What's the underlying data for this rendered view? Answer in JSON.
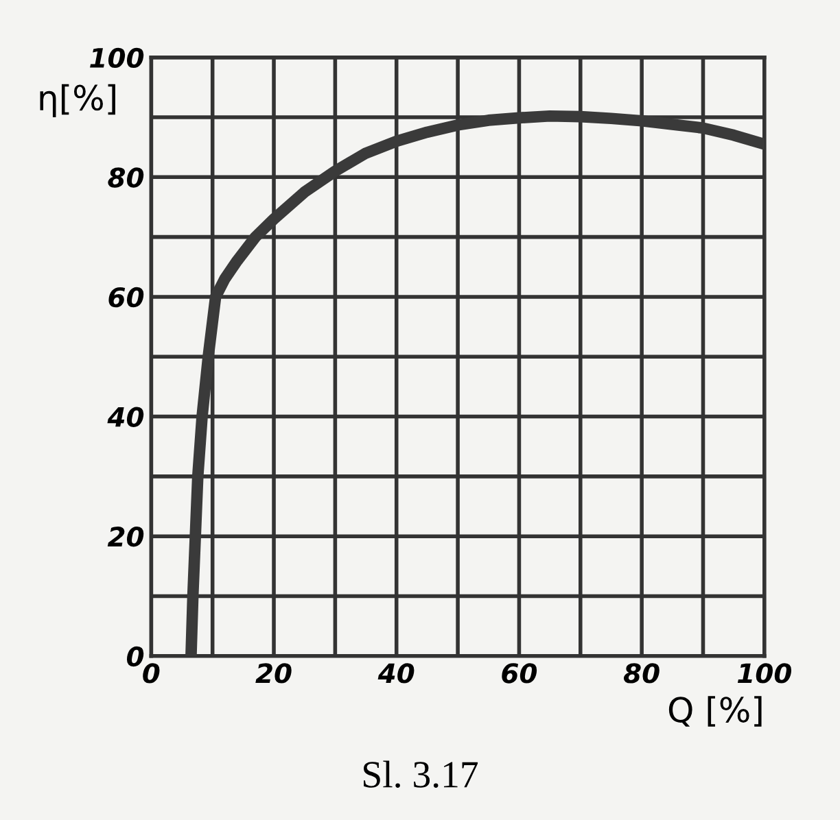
{
  "chart_data": {
    "type": "line",
    "xlabel": "Q [%]",
    "ylabel": "η[%]",
    "annotations": [
      "Sl. 3.17"
    ],
    "series": [
      {
        "color": "#3a3a3a",
        "x": [
          6.5,
          6.8,
          7.2,
          7.6,
          8.3,
          9.3,
          10.5,
          12,
          14,
          17,
          20,
          25,
          30,
          35,
          40,
          45,
          50,
          55,
          60,
          65,
          70,
          75,
          80,
          85,
          90,
          95,
          100
        ],
        "values": [
          0,
          10,
          20,
          30,
          40,
          50,
          60,
          63,
          66,
          70,
          73,
          77.5,
          81,
          84,
          86,
          87.5,
          88.7,
          89.5,
          89.9,
          90.2,
          90.1,
          89.8,
          89.4,
          88.8,
          88.2,
          87,
          85.5
        ]
      }
    ],
    "xlim": [
      0,
      100
    ],
    "ylim": [
      0,
      100
    ],
    "xticks": [
      0,
      {
        "value": 10,
        "label": null
      },
      20,
      {
        "value": 30,
        "label": null
      },
      40,
      {
        "value": 50,
        "label": null
      },
      60,
      {
        "value": 70,
        "label": null
      },
      80,
      {
        "value": 90,
        "label": null
      },
      100
    ],
    "yticks": [
      0,
      {
        "value": 10,
        "label": null
      },
      20,
      {
        "value": 30,
        "label": null
      },
      40,
      {
        "value": 50,
        "label": null
      },
      60,
      {
        "value": 70,
        "label": null
      },
      80,
      {
        "value": 90,
        "label": null
      },
      100
    ],
    "grid": true,
    "marker": "none",
    "line_style": "solid"
  }
}
